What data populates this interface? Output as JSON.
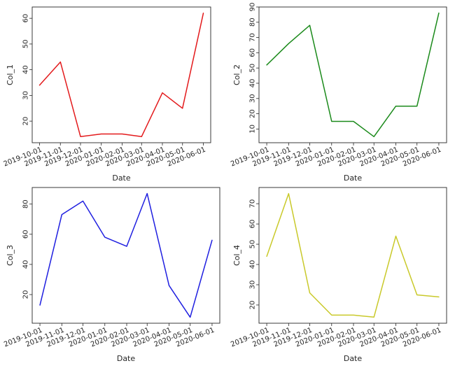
{
  "chart_data": [
    {
      "type": "line",
      "x": [
        "2019-10-01",
        "2019-11-01",
        "2019-12-01",
        "2020-01-01",
        "2020-02-01",
        "2020-03-01",
        "2020-04-01",
        "2020-05-01",
        "2020-06-01"
      ],
      "x_tick_labels": [
        "2019-10-01",
        "2019-11-01",
        "2019-12-01",
        "2020-01-01",
        "2020-02-01",
        "2020-03-01",
        "2020-04-01",
        "2020-05-01",
        "2020-06-01"
      ],
      "values": [
        34,
        43,
        14,
        15,
        15,
        14,
        31,
        25,
        62
      ],
      "color": "#e31a1c",
      "xlabel": "Date",
      "ylabel": "Col_1",
      "ylim": [
        11.6,
        64.4
      ],
      "yticks": [
        20,
        30,
        40,
        50,
        60
      ],
      "grid": false
    },
    {
      "type": "line",
      "x": [
        "2019-10-01",
        "2019-11-01",
        "2019-12-01",
        "2020-01-01",
        "2020-02-01",
        "2020-03-01",
        "2020-04-01",
        "2020-05-01",
        "2020-06-01"
      ],
      "x_tick_labels": [
        "2019-10-01",
        "2019-11-01",
        "2019-12-01",
        "2020-01-01",
        "2020-02-01",
        "2020-03-01",
        "2020-04-01",
        "2020-05-01",
        "2020-06-01"
      ],
      "values": [
        52,
        66,
        78,
        15,
        15,
        5,
        25,
        25,
        86
      ],
      "color": "#1b8a1b",
      "xlabel": "Date",
      "ylabel": "Col_2",
      "ylim": [
        1,
        90
      ],
      "yticks": [
        10,
        20,
        30,
        40,
        50,
        60,
        70,
        80,
        90
      ],
      "grid": false
    },
    {
      "type": "line",
      "x": [
        "2019-10-01",
        "2019-11-01",
        "2019-12-01",
        "2020-01-01",
        "2020-02-01",
        "2020-03-01",
        "2020-04-01",
        "2020-05-01",
        "2020-06-01"
      ],
      "x_tick_labels": [
        "2019-10-01",
        "2019-11-01",
        "2019-12-01",
        "2020-01-01",
        "2020-02-01",
        "2020-03-01",
        "2020-04-01",
        "2020-05-01",
        "2020-06-01"
      ],
      "values": [
        13,
        73,
        82,
        58,
        52,
        87,
        26,
        5,
        56
      ],
      "color": "#1f1fe0",
      "xlabel": "Date",
      "ylabel": "Col_3",
      "ylim": [
        1,
        91
      ],
      "yticks": [
        20,
        40,
        60,
        80
      ],
      "grid": false
    },
    {
      "type": "line",
      "x": [
        "2019-10-01",
        "2019-11-01",
        "2019-12-01",
        "2020-01-01",
        "2020-02-01",
        "2020-03-01",
        "2020-04-01",
        "2020-05-01",
        "2020-06-01"
      ],
      "x_tick_labels": [
        "2019-10-01",
        "2019-11-01",
        "2019-12-01",
        "2020-01-01",
        "2020-02-01",
        "2020-03-01",
        "2020-04-01",
        "2020-05-01",
        "2020-06-01"
      ],
      "values": [
        44,
        75,
        26,
        15,
        15,
        14,
        54,
        25,
        24
      ],
      "color": "#c9c92a",
      "xlabel": "Date",
      "ylabel": "Col_4",
      "ylim": [
        11,
        78
      ],
      "yticks": [
        20,
        30,
        40,
        50,
        60,
        70
      ],
      "grid": false
    }
  ]
}
